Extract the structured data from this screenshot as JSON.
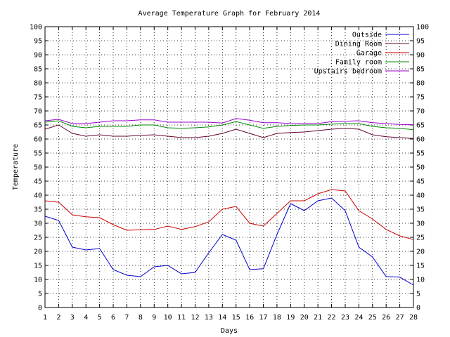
{
  "chart_data": {
    "type": "line",
    "title": "Average Temperature Graph for February 2014",
    "xlabel": "Days",
    "ylabel": "Temperature",
    "xlim": [
      1,
      28
    ],
    "ylim": [
      0,
      100
    ],
    "x_ticks": [
      1,
      2,
      3,
      4,
      5,
      6,
      7,
      8,
      9,
      10,
      11,
      12,
      13,
      14,
      15,
      16,
      17,
      18,
      19,
      20,
      21,
      22,
      23,
      24,
      25,
      26,
      27,
      28
    ],
    "y_ticks": [
      0,
      5,
      10,
      15,
      20,
      25,
      30,
      35,
      40,
      45,
      50,
      55,
      60,
      65,
      70,
      75,
      80,
      85,
      90,
      95,
      100
    ],
    "grid": true,
    "legend_position": "top-right",
    "x": [
      1,
      2,
      3,
      4,
      5,
      6,
      7,
      8,
      9,
      10,
      11,
      12,
      13,
      14,
      15,
      16,
      17,
      18,
      19,
      20,
      21,
      22,
      23,
      24,
      25,
      26,
      27,
      28
    ],
    "series": [
      {
        "name": "Outside",
        "color": "#0000cc",
        "values": [
          32.5,
          31,
          21.5,
          20.5,
          21,
          13.5,
          11.5,
          11,
          14.5,
          15,
          12,
          12.5,
          19.5,
          26,
          24,
          13.5,
          13.8,
          26,
          37,
          34.5,
          38,
          39,
          34.5,
          21.5,
          18,
          11,
          10.8,
          8
        ]
      },
      {
        "name": "Dining Room",
        "color": "#660033",
        "values": [
          63.5,
          65,
          62,
          61,
          61.5,
          61,
          61,
          61.3,
          61.5,
          61,
          60.5,
          60.5,
          61,
          62,
          63.5,
          62,
          60.5,
          62,
          62.3,
          62.5,
          63,
          63.5,
          63.8,
          63.5,
          61.5,
          60.8,
          60.5,
          60.2
        ]
      },
      {
        "name": "Garage",
        "color": "#cc0000",
        "values": [
          38,
          37.5,
          33,
          32.3,
          32,
          29.5,
          27.5,
          27.7,
          27.8,
          29,
          27.8,
          28.8,
          30.5,
          35,
          36,
          30,
          29,
          33.5,
          38,
          38,
          40.5,
          42,
          41.5,
          34.5,
          31.5,
          27.8,
          25.5,
          24.2
        ]
      },
      {
        "name": "Family room",
        "color": "#008800",
        "values": [
          66,
          66.5,
          64.5,
          64,
          64.5,
          64.5,
          64.5,
          65,
          65,
          64,
          63.8,
          64,
          64.3,
          65,
          66.2,
          65,
          63.8,
          64.5,
          64.8,
          65,
          65,
          65.3,
          65.5,
          65.5,
          64.5,
          64,
          63.8,
          63.3
        ]
      },
      {
        "name": "Upstairs bedroom",
        "color": "#9900cc",
        "values": [
          66.5,
          67,
          65.5,
          65.5,
          66,
          66.5,
          66.5,
          66.8,
          66.8,
          66,
          66,
          66,
          66,
          65.7,
          67.3,
          66.7,
          65.8,
          65.8,
          65.5,
          65.5,
          65.5,
          66.2,
          66.3,
          66.5,
          65.8,
          65.5,
          65.2,
          65.1
        ]
      }
    ]
  }
}
